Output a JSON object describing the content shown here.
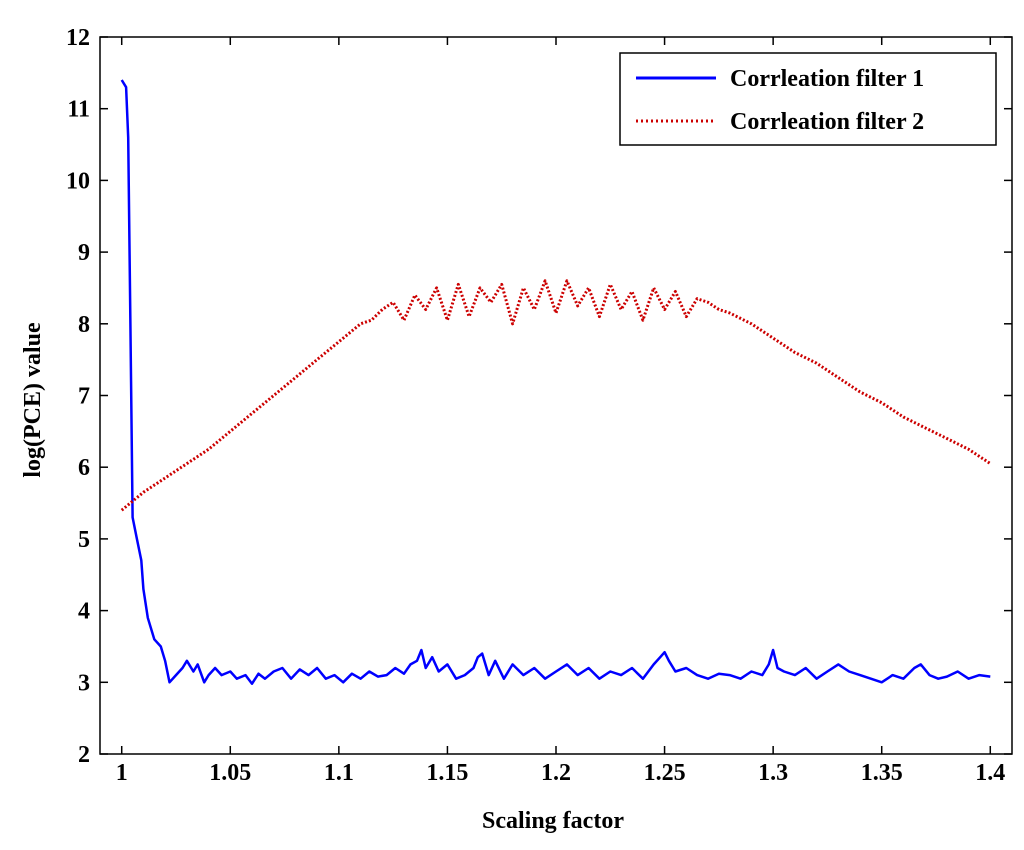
{
  "chart_data": {
    "type": "line",
    "title": "",
    "xlabel": "Scaling factor",
    "ylabel": "log(PCE) value",
    "xlim": [
      0.99,
      1.41
    ],
    "ylim": [
      2,
      12
    ],
    "x_ticks": [
      1,
      1.05,
      1.1,
      1.15,
      1.2,
      1.25,
      1.3,
      1.35,
      1.4
    ],
    "x_tick_labels": [
      "1",
      "1.05",
      "1.1",
      "1.15",
      "1.2",
      "1.25",
      "1.3",
      "1.35",
      "1.4"
    ],
    "y_ticks": [
      2,
      3,
      4,
      5,
      6,
      7,
      8,
      9,
      10,
      11,
      12
    ],
    "y_tick_labels": [
      "2",
      "3",
      "4",
      "5",
      "6",
      "7",
      "8",
      "9",
      "10",
      "11",
      "12"
    ],
    "grid": false,
    "legend_position": "top-right",
    "series": [
      {
        "name": "Corrleation filter 1",
        "color": "#0000ff",
        "style": "solid",
        "x": [
          1.0,
          1.002,
          1.003,
          1.004,
          1.005,
          1.007,
          1.009,
          1.01,
          1.012,
          1.015,
          1.018,
          1.02,
          1.022,
          1.025,
          1.028,
          1.03,
          1.033,
          1.035,
          1.038,
          1.04,
          1.043,
          1.046,
          1.05,
          1.053,
          1.057,
          1.06,
          1.063,
          1.066,
          1.07,
          1.074,
          1.078,
          1.082,
          1.086,
          1.09,
          1.094,
          1.098,
          1.102,
          1.106,
          1.11,
          1.114,
          1.118,
          1.122,
          1.126,
          1.13,
          1.133,
          1.136,
          1.138,
          1.14,
          1.143,
          1.146,
          1.15,
          1.154,
          1.158,
          1.162,
          1.164,
          1.166,
          1.169,
          1.172,
          1.176,
          1.18,
          1.185,
          1.19,
          1.195,
          1.2,
          1.205,
          1.21,
          1.215,
          1.22,
          1.225,
          1.23,
          1.235,
          1.24,
          1.245,
          1.248,
          1.25,
          1.252,
          1.255,
          1.26,
          1.265,
          1.27,
          1.275,
          1.28,
          1.285,
          1.29,
          1.295,
          1.298,
          1.3,
          1.302,
          1.305,
          1.31,
          1.315,
          1.32,
          1.325,
          1.33,
          1.335,
          1.34,
          1.345,
          1.35,
          1.355,
          1.36,
          1.365,
          1.368,
          1.372,
          1.376,
          1.38,
          1.385,
          1.39,
          1.395,
          1.4
        ],
        "y": [
          11.4,
          11.3,
          10.6,
          8.0,
          5.3,
          5.0,
          4.7,
          4.3,
          3.9,
          3.6,
          3.5,
          3.3,
          3.0,
          3.1,
          3.2,
          3.3,
          3.15,
          3.25,
          3.0,
          3.1,
          3.2,
          3.1,
          3.15,
          3.05,
          3.1,
          2.98,
          3.12,
          3.05,
          3.15,
          3.2,
          3.05,
          3.18,
          3.1,
          3.2,
          3.05,
          3.1,
          3.0,
          3.12,
          3.05,
          3.15,
          3.08,
          3.1,
          3.2,
          3.12,
          3.25,
          3.3,
          3.45,
          3.2,
          3.35,
          3.15,
          3.25,
          3.05,
          3.1,
          3.2,
          3.35,
          3.4,
          3.1,
          3.3,
          3.05,
          3.25,
          3.1,
          3.2,
          3.05,
          3.15,
          3.25,
          3.1,
          3.2,
          3.05,
          3.15,
          3.1,
          3.2,
          3.05,
          3.25,
          3.35,
          3.42,
          3.3,
          3.15,
          3.2,
          3.1,
          3.05,
          3.12,
          3.1,
          3.05,
          3.15,
          3.1,
          3.25,
          3.45,
          3.2,
          3.15,
          3.1,
          3.2,
          3.05,
          3.15,
          3.25,
          3.15,
          3.1,
          3.05,
          3.0,
          3.1,
          3.05,
          3.2,
          3.25,
          3.1,
          3.05,
          3.08,
          3.15,
          3.05,
          3.1,
          3.08
        ]
      },
      {
        "name": "Corrleation filter 2",
        "color": "#cc0000",
        "style": "dotted",
        "x": [
          1.0,
          1.01,
          1.02,
          1.03,
          1.04,
          1.05,
          1.06,
          1.07,
          1.08,
          1.09,
          1.1,
          1.11,
          1.115,
          1.12,
          1.125,
          1.13,
          1.135,
          1.14,
          1.145,
          1.15,
          1.155,
          1.16,
          1.165,
          1.17,
          1.175,
          1.18,
          1.185,
          1.19,
          1.195,
          1.2,
          1.205,
          1.21,
          1.215,
          1.22,
          1.225,
          1.23,
          1.235,
          1.24,
          1.245,
          1.25,
          1.255,
          1.26,
          1.265,
          1.27,
          1.275,
          1.28,
          1.29,
          1.3,
          1.31,
          1.32,
          1.33,
          1.34,
          1.35,
          1.36,
          1.37,
          1.38,
          1.39,
          1.4
        ],
        "y": [
          5.4,
          5.65,
          5.85,
          6.05,
          6.25,
          6.5,
          6.75,
          7.0,
          7.25,
          7.5,
          7.75,
          8.0,
          8.05,
          8.2,
          8.3,
          8.05,
          8.4,
          8.2,
          8.5,
          8.05,
          8.55,
          8.1,
          8.5,
          8.3,
          8.55,
          8.0,
          8.5,
          8.2,
          8.6,
          8.15,
          8.6,
          8.25,
          8.5,
          8.1,
          8.55,
          8.2,
          8.45,
          8.05,
          8.5,
          8.2,
          8.45,
          8.1,
          8.35,
          8.3,
          8.2,
          8.15,
          8.0,
          7.8,
          7.6,
          7.45,
          7.25,
          7.05,
          6.9,
          6.7,
          6.55,
          6.4,
          6.25,
          6.05
        ]
      }
    ]
  }
}
